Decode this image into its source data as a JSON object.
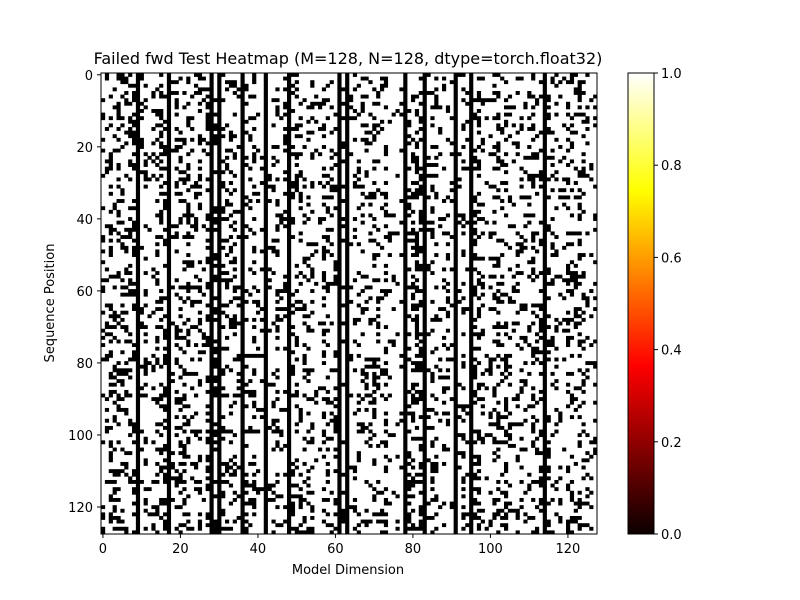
{
  "chart_data": {
    "type": "heatmap",
    "title": "Failed fwd Test Heatmap (M=128, N=128, dtype=torch.float32)",
    "xlabel": "Model Dimension",
    "ylabel": "Sequence Position",
    "rows": 128,
    "cols": 128,
    "xlim": [
      0,
      128
    ],
    "ylim": [
      128,
      0
    ],
    "xticks": [
      0,
      20,
      40,
      60,
      80,
      100,
      120
    ],
    "yticks": [
      0,
      20,
      40,
      60,
      80,
      100,
      120
    ],
    "colormap": "hot",
    "colorbar": {
      "range": [
        0,
        1
      ],
      "ticks": [
        "0.0",
        "0.2",
        "0.4",
        "0.6",
        "0.8",
        "1.0"
      ]
    },
    "values_description": "binary pass(1)/fail(0) matrix",
    "fully_failed_columns": [
      9,
      17,
      28,
      30,
      36,
      42,
      48,
      61,
      63,
      78,
      83,
      91,
      95,
      114
    ],
    "fail_rate_estimate": 0.22,
    "colors": {
      "fail": "#000000",
      "pass": "#ffffff",
      "hot_mid_red": "#ff0000",
      "hot_mid_yellow": "#ffff00"
    }
  }
}
